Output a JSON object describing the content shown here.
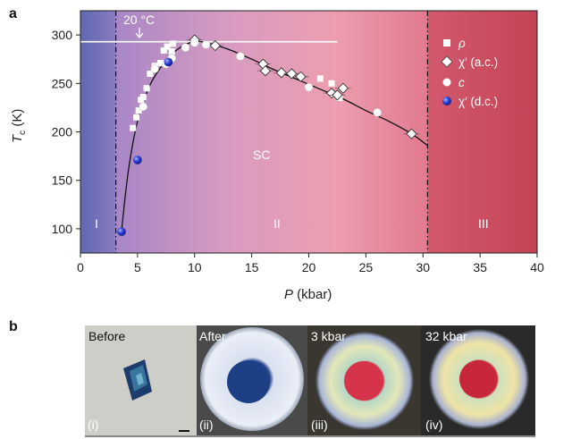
{
  "panel_a": {
    "letter": "a",
    "annotation": "20 °C",
    "sc_label": "SC",
    "regions": [
      "I",
      "II",
      "III"
    ],
    "legend": [
      {
        "label": "ρ",
        "marker": "square"
      },
      {
        "label": "χ′ (a.c.)",
        "marker": "diamond"
      },
      {
        "label": "c",
        "marker": "circle"
      },
      {
        "label": "χ′ (d.c.)",
        "marker": "blue-circle"
      }
    ]
  },
  "chart_data": {
    "type": "scatter",
    "xlabel": "P (kbar)",
    "ylabel": "Tc (K)",
    "xlim": [
      0,
      40
    ],
    "ylim": [
      75,
      325
    ],
    "xticks": [
      0,
      5,
      10,
      15,
      20,
      25,
      30,
      35,
      40
    ],
    "yticks": [
      100,
      150,
      200,
      250,
      300
    ],
    "grid": false,
    "legend_position": "right",
    "reference_line_y": 293,
    "boundaries_x": [
      3.1,
      30.4
    ],
    "series": [
      {
        "name": "ρ",
        "marker": "square",
        "x": [
          4.6,
          4.9,
          5.1,
          5.3,
          5.5,
          5.8,
          6.1,
          6.5,
          7,
          7.3,
          7.6,
          8,
          8.1,
          21,
          22,
          22.7
        ],
        "y": [
          204,
          215,
          222,
          233,
          236,
          245,
          260,
          268,
          271,
          284,
          288,
          283,
          291,
          255,
          250,
          235
        ]
      },
      {
        "name": "χ′ (a.c.)",
        "marker": "diamond",
        "x": [
          10,
          11.8,
          16,
          16.2,
          17.6,
          18.5,
          19.3,
          22,
          22.5,
          23,
          29
        ],
        "y": [
          295,
          289,
          270,
          263,
          261,
          260,
          257,
          240,
          238,
          245,
          198
        ]
      },
      {
        "name": "c",
        "marker": "circle",
        "x": [
          5.5,
          6.5,
          7.5,
          8,
          9.2,
          10,
          11,
          14,
          20,
          26
        ],
        "y": [
          226,
          265,
          270,
          276,
          287,
          292,
          290,
          278,
          246,
          220
        ]
      },
      {
        "name": "χ′ (d.c.)",
        "marker": "blue-circle",
        "x": [
          3.6,
          5,
          7.7
        ],
        "y": [
          97,
          171,
          272
        ]
      }
    ],
    "fit_curve": {
      "x": [
        3.6,
        4.2,
        5.0,
        6.0,
        7.0,
        8.0,
        9.0,
        10.0,
        11.0,
        13.0,
        15.0,
        17.0,
        19.0,
        21.0,
        23.0,
        25.0,
        27.0,
        29.0,
        30.4
      ],
      "y": [
        98,
        160,
        211,
        246,
        266,
        280,
        289,
        293,
        292,
        285,
        275,
        264,
        254,
        244,
        234,
        222,
        211,
        198,
        186
      ]
    }
  },
  "panel_b": {
    "letter": "b",
    "photos": [
      {
        "title": "Before",
        "index": "(i)"
      },
      {
        "title": "After",
        "index": "(ii)"
      },
      {
        "title": "3 kbar",
        "index": "(iii)"
      },
      {
        "title": "32 kbar",
        "index": "(iv)"
      }
    ]
  },
  "colors": {
    "region_I": "#6a6fb5",
    "region_II_start": "#b98ac6",
    "region_II_end": "#e27f96",
    "region_III": "#c74a5c",
    "fit_line": "#111111",
    "dc_marker": "#2a3fd6",
    "sample_red": "#d63a4a"
  }
}
